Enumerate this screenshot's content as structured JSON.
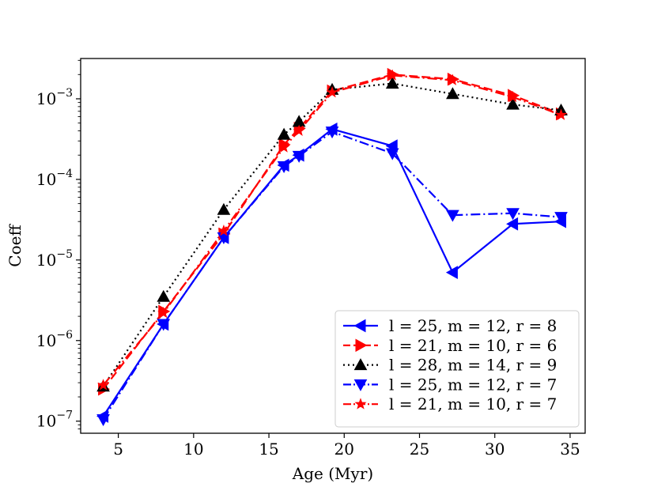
{
  "chart_data": {
    "type": "line",
    "title": "",
    "xlabel": "Age (Myr)",
    "ylabel": "Coeff",
    "xlim": [
      2.5,
      36.0
    ],
    "ylim_log10": [
      -7.15,
      -2.5
    ],
    "yscale": "log",
    "x_ticks": [
      5,
      10,
      15,
      20,
      25,
      30,
      35
    ],
    "y_ticks": [
      {
        "base": "10",
        "exp": "−7",
        "log10": -7
      },
      {
        "base": "10",
        "exp": "−6",
        "log10": -6
      },
      {
        "base": "10",
        "exp": "−5",
        "log10": -5
      },
      {
        "base": "10",
        "exp": "−4",
        "log10": -4
      },
      {
        "base": "10",
        "exp": "−3",
        "log10": -3
      }
    ],
    "legend_position": "lower right",
    "series": [
      {
        "name": "l = 25, m = 12, r = 8",
        "color": "#0000ff",
        "linestyle": "solid",
        "marker": "triangle-left",
        "x": [
          4,
          8,
          12,
          16,
          17,
          19.2,
          23.2,
          27.2,
          31.2,
          34.4
        ],
        "y": [
          1.15e-07,
          1.6e-06,
          1.9e-05,
          0.00015,
          0.0002,
          0.00042,
          0.00026,
          7e-06,
          2.8e-05,
          3e-05
        ]
      },
      {
        "name": "l = 21, m = 10, r = 6",
        "color": "#ff0000",
        "linestyle": "dashed",
        "marker": "triangle-right",
        "x": [
          4,
          8,
          12,
          16,
          17,
          19.2,
          23.2,
          27.2,
          31.2,
          34.4
        ],
        "y": [
          2.5e-07,
          2.3e-06,
          2.1e-05,
          0.00027,
          0.00043,
          0.00125,
          0.002,
          0.00175,
          0.0011,
          0.00065
        ]
      },
      {
        "name": "l = 28, m = 14, r = 9",
        "color": "#000000",
        "linestyle": "dotted",
        "marker": "triangle-up",
        "x": [
          4,
          8,
          12,
          16,
          17,
          19.2,
          23.2,
          27.2,
          31.2,
          34.4
        ],
        "y": [
          2.7e-07,
          3.5e-06,
          4.2e-05,
          0.00036,
          0.00052,
          0.0013,
          0.00155,
          0.00115,
          0.00085,
          0.00072
        ]
      },
      {
        "name": "l = 25, m = 12, r = 7",
        "color": "#0000ff",
        "linestyle": "dashdot",
        "marker": "triangle-down",
        "x": [
          4,
          8,
          12,
          16,
          17,
          19.2,
          23.2,
          27.2,
          31.2,
          34.4
        ],
        "y": [
          1.05e-07,
          1.6e-06,
          1.9e-05,
          0.000145,
          0.000195,
          0.00039,
          0.00021,
          3.6e-05,
          3.8e-05,
          3.4e-05
        ]
      },
      {
        "name": "l = 21, m = 10, r = 7",
        "color": "#ff0000",
        "linestyle": "dashdot",
        "marker": "star",
        "x": [
          4,
          8,
          12,
          16,
          17,
          19.2,
          23.2,
          27.2,
          31.2,
          34.4
        ],
        "y": [
          2.8e-07,
          2.2e-06,
          2.3e-05,
          0.00025,
          0.0004,
          0.0012,
          0.00195,
          0.0017,
          0.00105,
          0.00063
        ]
      }
    ]
  }
}
